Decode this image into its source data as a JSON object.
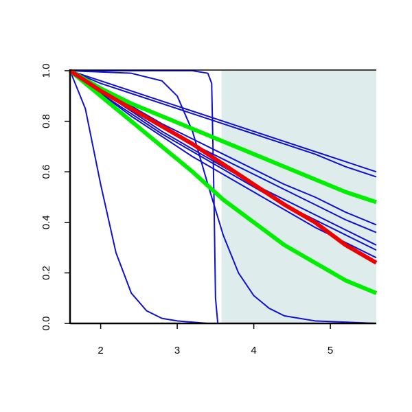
{
  "chart_data": {
    "type": "line",
    "xlim": [
      1.6,
      5.6
    ],
    "ylim": [
      0,
      1
    ],
    "xticks": [
      2,
      3,
      4,
      5
    ],
    "yticks": [
      {
        "value": 0,
        "label": "0.0"
      },
      0.2,
      0.4,
      0.6,
      0.8,
      {
        "value": 1,
        "label": "1.0"
      }
    ],
    "shaded_x": [
      3.58,
      5.6
    ],
    "shade_color": "#deecec",
    "series": [
      {
        "color": "#1010d0",
        "linewidth": 1,
        "x": [
          1.6,
          1.8,
          2.0,
          2.2,
          2.4,
          2.6,
          2.8,
          3.0,
          3.4,
          5.6
        ],
        "values": [
          1,
          0.85,
          0.55,
          0.28,
          0.12,
          0.05,
          0.02,
          0.01,
          0,
          0
        ]
      },
      {
        "color": "#1010d0",
        "linewidth": 1,
        "x": [
          1.6,
          3.2,
          3.4,
          3.45,
          3.48,
          3.5,
          3.53,
          5.6
        ],
        "values": [
          1,
          1,
          0.99,
          0.95,
          0.5,
          0.1,
          0,
          0
        ]
      },
      {
        "color": "#1010d0",
        "linewidth": 1,
        "x": [
          1.6,
          2.4,
          2.8,
          3.0,
          3.2,
          3.4,
          3.6,
          3.8,
          4.0,
          4.2,
          4.4,
          4.8,
          5.6
        ],
        "values": [
          1,
          0.99,
          0.96,
          0.9,
          0.76,
          0.55,
          0.35,
          0.2,
          0.11,
          0.06,
          0.03,
          0.01,
          0
        ]
      },
      {
        "color": "#1010d0",
        "linewidth": 1,
        "x": [
          1.6,
          2.0,
          2.4,
          2.8,
          3.2,
          3.6,
          4.0,
          4.4,
          4.8,
          5.2,
          5.6
        ],
        "values": [
          1,
          0.96,
          0.92,
          0.88,
          0.84,
          0.8,
          0.76,
          0.72,
          0.68,
          0.64,
          0.6
        ]
      },
      {
        "color": "#1010d0",
        "linewidth": 1,
        "x": [
          1.6,
          2.0,
          2.4,
          2.8,
          3.2,
          3.6,
          4.0,
          4.4,
          4.8,
          5.2,
          5.6
        ],
        "values": [
          1,
          0.95,
          0.91,
          0.87,
          0.83,
          0.79,
          0.75,
          0.71,
          0.67,
          0.62,
          0.58
        ]
      },
      {
        "color": "#1010d0",
        "linewidth": 1,
        "x": [
          1.6,
          2.0,
          2.4,
          2.8,
          3.2,
          3.6,
          4.0,
          4.4,
          4.8,
          5.2,
          5.6
        ],
        "values": [
          1,
          0.93,
          0.86,
          0.79,
          0.73,
          0.67,
          0.61,
          0.55,
          0.5,
          0.44,
          0.39
        ]
      },
      {
        "color": "#1010d0",
        "linewidth": 1,
        "x": [
          1.6,
          2.0,
          2.4,
          2.8,
          3.2,
          3.6,
          4.0,
          4.4,
          4.8,
          5.2,
          5.6
        ],
        "values": [
          1,
          0.92,
          0.85,
          0.78,
          0.71,
          0.65,
          0.59,
          0.53,
          0.47,
          0.41,
          0.36
        ]
      },
      {
        "color": "#1010d0",
        "linewidth": 1,
        "x": [
          1.6,
          2.0,
          2.4,
          2.8,
          3.2,
          3.6,
          4.0,
          4.4,
          4.8,
          5.2,
          5.6
        ],
        "values": [
          1,
          0.92,
          0.84,
          0.76,
          0.69,
          0.62,
          0.55,
          0.49,
          0.43,
          0.37,
          0.31
        ]
      },
      {
        "color": "#1010d0",
        "linewidth": 1,
        "x": [
          1.6,
          2.0,
          2.4,
          2.8,
          3.2,
          3.6,
          4.0,
          4.4,
          4.8,
          5.2,
          5.6
        ],
        "values": [
          1,
          0.91,
          0.83,
          0.75,
          0.68,
          0.61,
          0.54,
          0.47,
          0.41,
          0.35,
          0.29
        ]
      },
      {
        "color": "#1010d0",
        "linewidth": 1,
        "x": [
          1.6,
          2.0,
          2.4,
          2.8,
          3.2,
          3.6,
          4.0,
          4.4,
          4.8,
          5.2,
          5.6
        ],
        "values": [
          1,
          0.91,
          0.82,
          0.74,
          0.66,
          0.59,
          0.52,
          0.45,
          0.38,
          0.32,
          0.26
        ]
      },
      {
        "color": "#00ee00",
        "linewidth": 3,
        "x": [
          1.6,
          2.0,
          2.4,
          2.8,
          3.2,
          3.6,
          4.0,
          4.4,
          4.8,
          5.2,
          5.6
        ],
        "values": [
          1,
          0.93,
          0.87,
          0.82,
          0.77,
          0.72,
          0.67,
          0.62,
          0.57,
          0.52,
          0.48
        ]
      },
      {
        "color": "#00ee00",
        "linewidth": 3,
        "x": [
          1.6,
          2.0,
          2.4,
          2.8,
          3.2,
          3.6,
          4.0,
          4.4,
          4.8,
          5.2,
          5.6
        ],
        "values": [
          1,
          0.9,
          0.8,
          0.7,
          0.6,
          0.49,
          0.4,
          0.31,
          0.24,
          0.17,
          0.12
        ]
      },
      {
        "color": "#ee0000",
        "linewidth": 3,
        "x": [
          1.6,
          2.0,
          2.4,
          2.8,
          3.2,
          3.6,
          4.0,
          4.4,
          4.8,
          5.2,
          5.6
        ],
        "values": [
          1,
          0.92,
          0.85,
          0.78,
          0.71,
          0.63,
          0.55,
          0.47,
          0.4,
          0.31,
          0.24
        ]
      }
    ]
  }
}
